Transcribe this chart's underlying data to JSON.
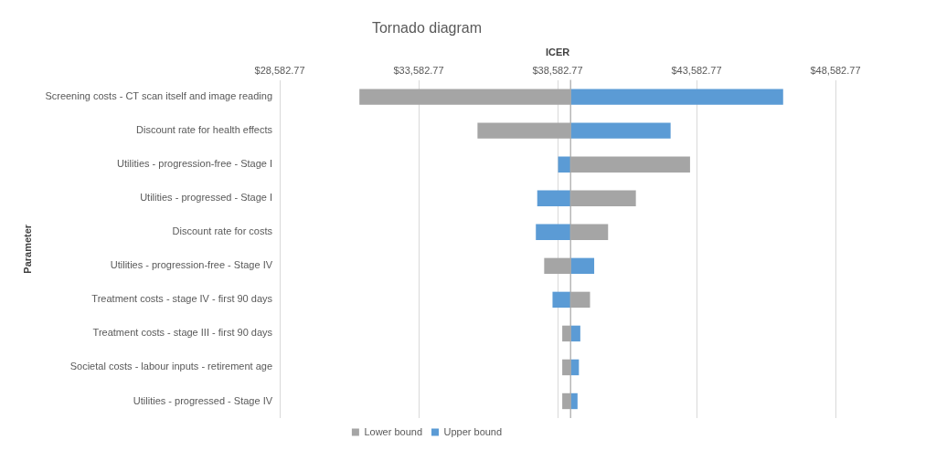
{
  "chart_data": {
    "type": "bar",
    "orientation": "horizontal",
    "title": "Tornado diagram",
    "xlabel": "ICER",
    "ylabel": "Parameter",
    "categories": [
      "Screening costs - CT scan itself and image reading",
      "Discount rate for health effects",
      "Utilities - progression-free - Stage I",
      "Utilities - progressed - Stage I",
      "Discount rate for costs",
      "Utilities - progression-free - Stage IV",
      "Treatment costs - stage IV - first 90 days",
      "Treatment costs - stage III - first 90 days",
      "Societal costs - labour inputs - retirement age",
      "Utilities - progressed - Stage IV"
    ],
    "series": [
      {
        "name": "Lower bound",
        "color": "#a5a5a5",
        "base": [
          39050,
          39050,
          39050,
          39050,
          39050,
          39050,
          39050,
          39050,
          39050,
          39050
        ],
        "values": [
          -7600,
          -3350,
          4300,
          2350,
          1350,
          -950,
          700,
          -300,
          -300,
          -300
        ]
      },
      {
        "name": "Upper bound",
        "color": "#5b9bd5",
        "base": [
          39050,
          39050,
          39050,
          39050,
          39050,
          39050,
          39050,
          39050,
          39050,
          39050
        ],
        "values": [
          7650,
          3600,
          -450,
          -1200,
          -1250,
          850,
          -650,
          350,
          300,
          250
        ]
      }
    ],
    "xlim": [
      28582.77,
      48582.77
    ],
    "xticks": [
      {
        "value": 28582.77,
        "label": "$28,582.77"
      },
      {
        "value": 33582.77,
        "label": "$33,582.77"
      },
      {
        "value": 38582.77,
        "label": "$38,582.77"
      },
      {
        "value": 43582.77,
        "label": "$43,582.77"
      },
      {
        "value": 48582.77,
        "label": "$48,582.77"
      }
    ],
    "ref_lines": [
      {
        "axis": "x",
        "value": 39050,
        "color": "#a6a6a6"
      }
    ],
    "grid": "x",
    "legend": "bottom"
  }
}
